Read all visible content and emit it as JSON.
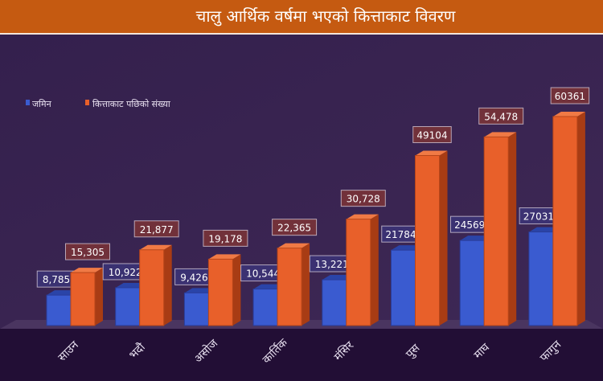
{
  "chart_data": {
    "type": "bar",
    "title": "चालु आर्थिक वर्षमा भएको कित्ताकाट विवरण",
    "categories": [
      "साउन",
      "भदौ",
      "असोज",
      "कार्तिक",
      "मंसिर",
      "पुस",
      "माघ",
      "फागुन"
    ],
    "series": [
      {
        "name": "जमिन",
        "color": "#3a5bd0",
        "values": [
          8785,
          10922,
          9426,
          10544,
          13221,
          21784,
          24569,
          27031
        ],
        "labels": [
          "8,785",
          "10,922",
          "9,426",
          "10,544",
          "13,221",
          "21784",
          "24569",
          "27031"
        ]
      },
      {
        "name": "कित्ताकाट पछिको संख्या",
        "color": "#e8602a",
        "values": [
          15305,
          21877,
          19178,
          22365,
          30728,
          49104,
          54478,
          60361
        ],
        "labels": [
          "15,305",
          "21,877",
          "19,178",
          "22,365",
          "30,728",
          "49104",
          "54,478",
          "60361"
        ]
      }
    ],
    "legend": "top-left",
    "ylim": [
      0,
      62000
    ],
    "grid": false
  }
}
